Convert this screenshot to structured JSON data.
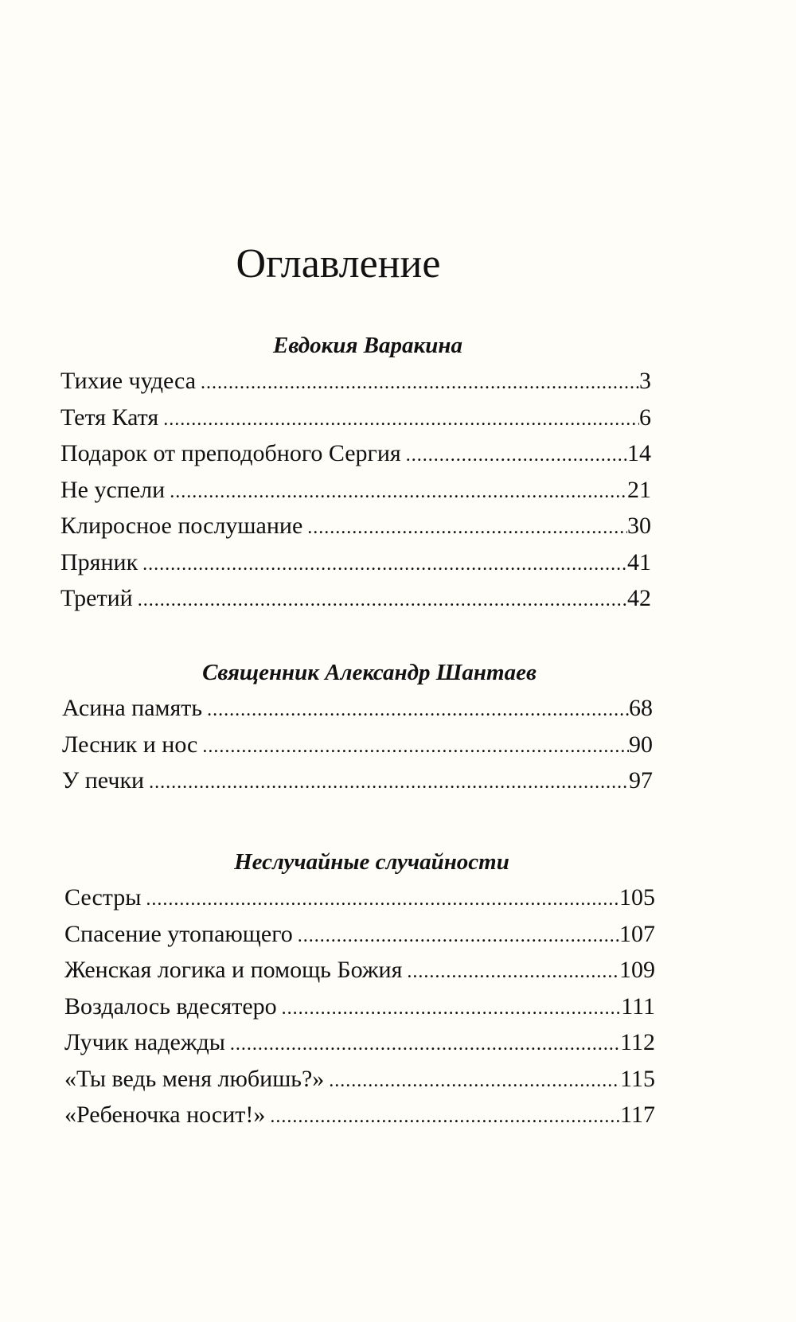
{
  "title": "Оглавление",
  "sections": [
    {
      "author": "Евдокия Варакина",
      "entries": [
        {
          "title": "Тихие чудеса",
          "page": "3"
        },
        {
          "title": "Тетя Катя",
          "page": "6"
        },
        {
          "title": "Подарок от преподобного Сергия",
          "page": "14"
        },
        {
          "title": "Не успели",
          "page": "21"
        },
        {
          "title": "Клиросное послушание",
          "page": "30"
        },
        {
          "title": "Пряник",
          "page": "41"
        },
        {
          "title": "Третий",
          "page": "42"
        }
      ]
    },
    {
      "author": "Священник Александр Шантаев",
      "entries": [
        {
          "title": "Асина память",
          "page": "68"
        },
        {
          "title": "Лесник и нос",
          "page": "90"
        },
        {
          "title": "У печки",
          "page": "97"
        }
      ]
    },
    {
      "author": "Неслучайные случайности",
      "entries": [
        {
          "title": "Сестры",
          "page": "105"
        },
        {
          "title": "Спасение утопающего",
          "page": "107"
        },
        {
          "title": "Женская логика и помощь Божия",
          "page": "109"
        },
        {
          "title": "Воздалось вдесятеро",
          "page": "111"
        },
        {
          "title": "Лучик надежды",
          "page": "112"
        },
        {
          "title": "«Ты ведь меня любишь?»",
          "page": "115"
        },
        {
          "title": "«Ребеночка носит!»",
          "page": "117"
        }
      ]
    }
  ]
}
